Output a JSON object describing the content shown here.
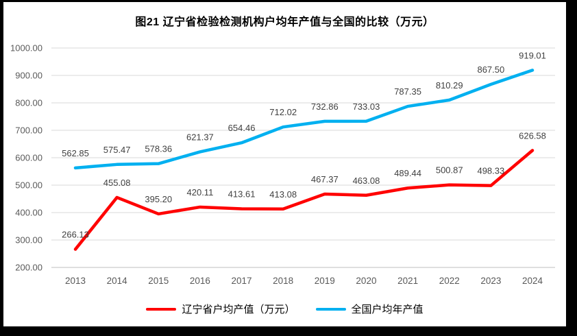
{
  "chart": {
    "title": "图21 辽宁省检验检测机构户均年产值与全国的比较（万元）"
  },
  "chart_data": {
    "type": "line",
    "title": "图21 辽宁省检验检测机构户均年产值与全国的比较（万元）",
    "categories": [
      "2013",
      "2014",
      "2015",
      "2016",
      "2017",
      "2018",
      "2019",
      "2020",
      "2021",
      "2022",
      "2023",
      "2024"
    ],
    "series": [
      {
        "name": "辽宁省户均产值（万元）",
        "color": "#FF0000",
        "values": [
          266.13,
          455.08,
          395.2,
          420.11,
          413.61,
          413.08,
          467.37,
          463.08,
          489.44,
          500.87,
          498.33,
          626.58
        ],
        "labels": [
          "266.13",
          "455.08",
          "395.20",
          "420.11",
          "413.61",
          "413.08",
          "467.37",
          "463.08",
          "489.44",
          "500.87",
          "498.33",
          "626.58"
        ]
      },
      {
        "name": "全国户均年产值",
        "color": "#00B0F0",
        "values": [
          562.85,
          575.47,
          578.36,
          621.37,
          654.46,
          712.02,
          732.86,
          733.03,
          787.35,
          810.29,
          867.5,
          919.01
        ],
        "labels": [
          "562.85",
          "575.47",
          "578.36",
          "621.37",
          "654.46",
          "712.02",
          "732.86",
          "733.03",
          "787.35",
          "810.29",
          "867.50",
          "919.01"
        ]
      }
    ],
    "ylim": [
      200,
      1000
    ],
    "y_tick_step": 100,
    "y_tick_labels": [
      "200.00",
      "300.00",
      "400.00",
      "500.00",
      "600.00",
      "700.00",
      "800.00",
      "900.00",
      "1000.00"
    ],
    "grid": true,
    "legend_position": "bottom",
    "colors": {
      "gridline": "#D9D9D9",
      "axis_line": "#BFBFBF",
      "tick_label": "#595959",
      "data_label": "#404040"
    }
  }
}
